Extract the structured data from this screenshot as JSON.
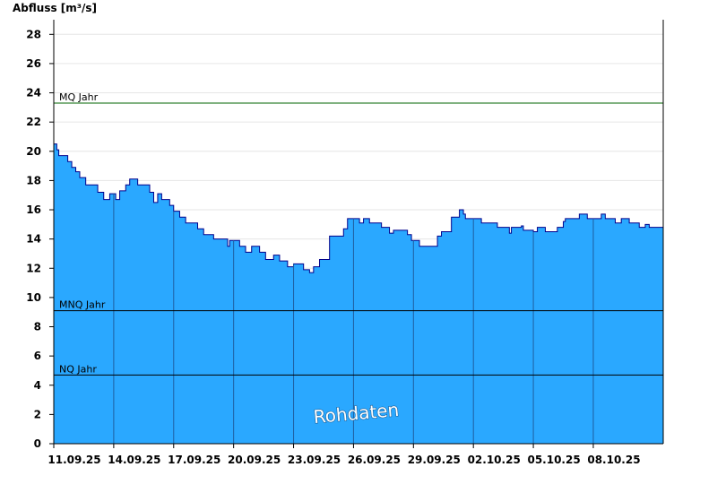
{
  "chart_data": {
    "type": "area",
    "ylabel": "Abfluss [m³/s]",
    "ylim": [
      0,
      29
    ],
    "yticks": [
      0,
      2,
      4,
      6,
      8,
      10,
      12,
      14,
      16,
      18,
      20,
      22,
      24,
      26,
      28
    ],
    "xlim": [
      0,
      30.5
    ],
    "xticks": [
      {
        "x": 0,
        "label": "11.09.25"
      },
      {
        "x": 3,
        "label": "14.09.25"
      },
      {
        "x": 6,
        "label": "17.09.25"
      },
      {
        "x": 9,
        "label": "20.09.25"
      },
      {
        "x": 12,
        "label": "23.09.25"
      },
      {
        "x": 15,
        "label": "26.09.25"
      },
      {
        "x": 18,
        "label": "29.09.25"
      },
      {
        "x": 21,
        "label": "02.10.25"
      },
      {
        "x": 24,
        "label": "05.10.25"
      },
      {
        "x": 27,
        "label": "08.10.25"
      }
    ],
    "series": [
      {
        "values": [
          [
            0.0,
            20.5
          ],
          [
            0.15,
            20.1
          ],
          [
            0.25,
            19.7
          ],
          [
            0.7,
            19.3
          ],
          [
            0.9,
            18.9
          ],
          [
            1.1,
            18.6
          ],
          [
            1.3,
            18.2
          ],
          [
            1.6,
            17.7
          ],
          [
            2.2,
            17.2
          ],
          [
            2.5,
            16.7
          ],
          [
            2.8,
            17.1
          ],
          [
            3.1,
            16.7
          ],
          [
            3.3,
            17.3
          ],
          [
            3.6,
            17.7
          ],
          [
            3.8,
            18.1
          ],
          [
            4.2,
            17.7
          ],
          [
            4.8,
            17.2
          ],
          [
            5.0,
            16.5
          ],
          [
            5.2,
            17.1
          ],
          [
            5.4,
            16.7
          ],
          [
            5.8,
            16.3
          ],
          [
            6.0,
            15.9
          ],
          [
            6.3,
            15.5
          ],
          [
            6.6,
            15.1
          ],
          [
            7.2,
            14.7
          ],
          [
            7.5,
            14.3
          ],
          [
            8.0,
            14.0
          ],
          [
            8.7,
            13.5
          ],
          [
            8.8,
            13.9
          ],
          [
            9.3,
            13.5
          ],
          [
            9.6,
            13.1
          ],
          [
            9.9,
            13.5
          ],
          [
            10.3,
            13.1
          ],
          [
            10.6,
            12.6
          ],
          [
            11.0,
            12.9
          ],
          [
            11.3,
            12.5
          ],
          [
            11.7,
            12.1
          ],
          [
            12.0,
            12.3
          ],
          [
            12.5,
            11.9
          ],
          [
            12.8,
            11.7
          ],
          [
            13.0,
            12.1
          ],
          [
            13.3,
            12.6
          ],
          [
            13.8,
            14.2
          ],
          [
            14.5,
            14.7
          ],
          [
            14.7,
            15.4
          ],
          [
            15.3,
            15.1
          ],
          [
            15.5,
            15.4
          ],
          [
            15.8,
            15.1
          ],
          [
            16.4,
            14.8
          ],
          [
            16.8,
            14.4
          ],
          [
            17.0,
            14.6
          ],
          [
            17.7,
            14.3
          ],
          [
            17.9,
            13.9
          ],
          [
            18.3,
            13.5
          ],
          [
            19.2,
            14.2
          ],
          [
            19.4,
            14.5
          ],
          [
            19.9,
            15.5
          ],
          [
            20.3,
            16.0
          ],
          [
            20.5,
            15.7
          ],
          [
            20.6,
            15.4
          ],
          [
            21.4,
            15.1
          ],
          [
            22.1,
            15.1
          ],
          [
            22.2,
            14.8
          ],
          [
            22.8,
            14.4
          ],
          [
            22.9,
            14.8
          ],
          [
            23.4,
            14.9
          ],
          [
            23.5,
            14.6
          ],
          [
            24.0,
            14.5
          ],
          [
            24.2,
            14.8
          ],
          [
            24.6,
            14.5
          ],
          [
            25.2,
            14.8
          ],
          [
            25.5,
            15.2
          ],
          [
            25.6,
            15.4
          ],
          [
            26.3,
            15.7
          ],
          [
            26.7,
            15.4
          ],
          [
            27.4,
            15.7
          ],
          [
            27.6,
            15.4
          ],
          [
            28.1,
            15.1
          ],
          [
            28.4,
            15.4
          ],
          [
            28.8,
            15.1
          ],
          [
            29.3,
            14.8
          ],
          [
            29.6,
            15.0
          ],
          [
            29.8,
            14.8
          ],
          [
            30.5,
            14.8
          ]
        ]
      }
    ],
    "reference_lines": [
      {
        "label": "MQ Jahr",
        "value": 23.3,
        "color": "#006400"
      },
      {
        "label": "MNQ Jahr",
        "value": 9.1,
        "color": "#000000"
      },
      {
        "label": "NQ Jahr",
        "value": 4.7,
        "color": "#000000"
      }
    ],
    "watermark": "Rohdaten",
    "colors": {
      "fill": "#2aa8ff",
      "line": "#00008b",
      "grid": "#e6e6e6"
    }
  }
}
